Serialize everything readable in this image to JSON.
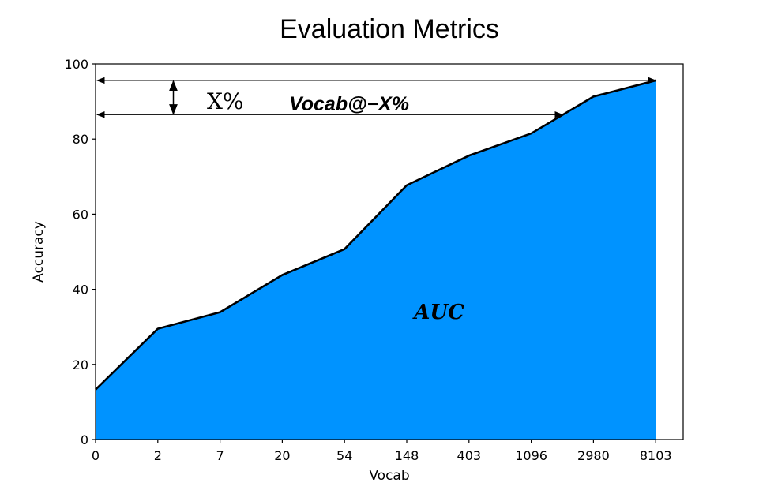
{
  "chart_data": {
    "type": "area",
    "title": "Evaluation Metrics",
    "xlabel": "Vocab",
    "ylabel": "Accuracy",
    "categories": [
      "0",
      "2",
      "7",
      "20",
      "54",
      "148",
      "403",
      "1096",
      "2980",
      "8103"
    ],
    "values": [
      13.3,
      29.5,
      33.9,
      43.8,
      50.7,
      67.7,
      75.6,
      81.5,
      91.3,
      95.6
    ],
    "ylim": [
      0,
      100
    ],
    "yticks": [
      0,
      20,
      40,
      60,
      80,
      100
    ],
    "fill_color": "#0093ff",
    "line_color": "#000000",
    "grid": false,
    "annotations": {
      "x_percent": "X%",
      "vocab_at": "Vocab@−X%",
      "auc": "AUC",
      "top_line_y": 95.6,
      "lower_line_y": 86.5,
      "lower_line_x_end": 7.5,
      "vertical_arrow_x": 1.25
    }
  }
}
